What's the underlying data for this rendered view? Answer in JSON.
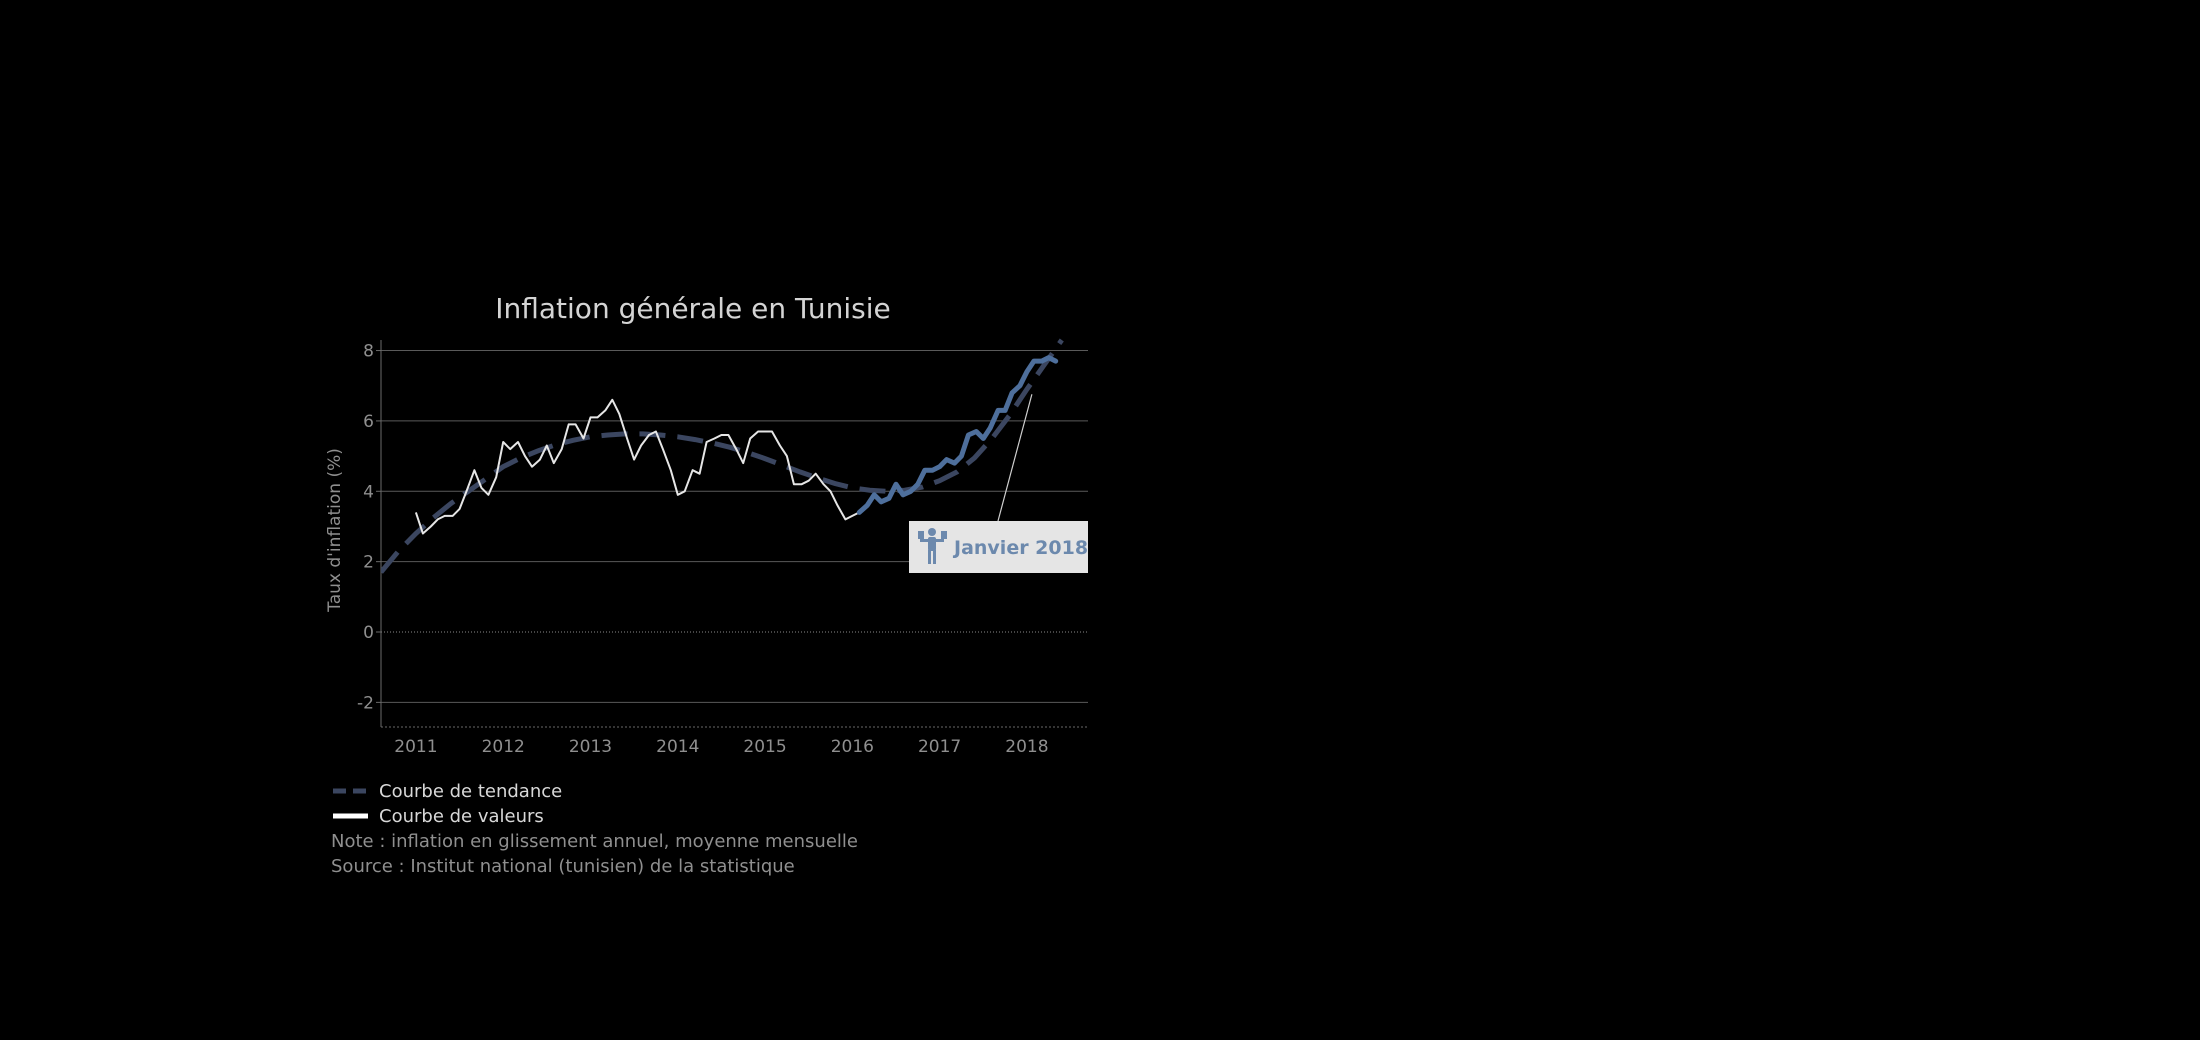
{
  "chart_data": {
    "type": "line",
    "title": "Inflation générale en Tunisie",
    "ylabel": "Taux d'inflation (%)",
    "xlabel": "",
    "ylim": [
      -2.7,
      8.3
    ],
    "xlim": [
      2010.6,
      2018.7
    ],
    "y_ticks": [
      8,
      6,
      4,
      2,
      0,
      -2
    ],
    "y_tick_labels": [
      "8",
      "6",
      "4",
      "2",
      "0",
      "-2"
    ],
    "x_ticks": [
      2011,
      2012,
      2013,
      2014,
      2015,
      2016,
      2017,
      2018
    ],
    "x_tick_labels": [
      "2011",
      "2012",
      "2013",
      "2014",
      "2015",
      "2016",
      "2017",
      "2018"
    ],
    "grid": true,
    "highlight_start": 2016.08,
    "series": [
      {
        "name": "Courbe de valeurs",
        "color": "#e6e6e6",
        "highlight_color": "#4e6f9c",
        "x": [
          2011.0,
          2011.08,
          2011.17,
          2011.25,
          2011.33,
          2011.42,
          2011.5,
          2011.58,
          2011.67,
          2011.75,
          2011.83,
          2011.92,
          2012.0,
          2012.08,
          2012.17,
          2012.25,
          2012.33,
          2012.42,
          2012.5,
          2012.58,
          2012.67,
          2012.75,
          2012.83,
          2012.92,
          2013.0,
          2013.08,
          2013.17,
          2013.25,
          2013.33,
          2013.42,
          2013.5,
          2013.58,
          2013.67,
          2013.75,
          2013.83,
          2013.92,
          2014.0,
          2014.08,
          2014.17,
          2014.25,
          2014.33,
          2014.42,
          2014.5,
          2014.58,
          2014.67,
          2014.75,
          2014.83,
          2014.92,
          2015.0,
          2015.08,
          2015.17,
          2015.25,
          2015.33,
          2015.42,
          2015.5,
          2015.58,
          2015.67,
          2015.75,
          2015.83,
          2015.92,
          2016.0,
          2016.08,
          2016.17,
          2016.25,
          2016.33,
          2016.42,
          2016.5,
          2016.58,
          2016.67,
          2016.75,
          2016.83,
          2016.92,
          2017.0,
          2017.08,
          2017.17,
          2017.25,
          2017.33,
          2017.42,
          2017.5,
          2017.58,
          2017.67,
          2017.75,
          2017.83,
          2017.92,
          2018.0,
          2018.08,
          2018.17,
          2018.25,
          2018.33
        ],
        "y": [
          3.4,
          2.8,
          3.0,
          3.2,
          3.3,
          3.3,
          3.5,
          4.0,
          4.6,
          4.1,
          3.9,
          4.4,
          5.4,
          5.2,
          5.4,
          5.0,
          4.7,
          4.9,
          5.3,
          4.8,
          5.2,
          5.9,
          5.9,
          5.5,
          6.1,
          6.1,
          6.3,
          6.6,
          6.2,
          5.5,
          4.9,
          5.3,
          5.6,
          5.7,
          5.2,
          4.6,
          3.9,
          4.0,
          4.6,
          4.5,
          5.4,
          5.5,
          5.6,
          5.6,
          5.2,
          4.8,
          5.5,
          5.7,
          5.7,
          5.7,
          5.3,
          5.0,
          4.2,
          4.2,
          4.3,
          4.5,
          4.2,
          4.0,
          3.6,
          3.2,
          3.3,
          3.4,
          3.6,
          3.9,
          3.7,
          3.8,
          4.2,
          3.9,
          4.0,
          4.2,
          4.6,
          4.6,
          4.7,
          4.9,
          4.8,
          5.0,
          5.6,
          5.7,
          5.5,
          5.8,
          6.3,
          6.3,
          6.8,
          7.0,
          7.4,
          7.7,
          7.7,
          7.8,
          7.7
        ]
      },
      {
        "name": "Courbe de tendance",
        "color": "#3b4660",
        "x": [
          2010.6,
          2010.8,
          2011.0,
          2011.2,
          2011.4,
          2011.6,
          2011.8,
          2012.0,
          2012.2,
          2012.4,
          2012.6,
          2012.8,
          2013.0,
          2013.2,
          2013.4,
          2013.6,
          2013.8,
          2014.0,
          2014.2,
          2014.4,
          2014.6,
          2014.8,
          2015.0,
          2015.2,
          2015.4,
          2015.6,
          2015.8,
          2016.0,
          2016.2,
          2016.4,
          2016.6,
          2016.8,
          2017.0,
          2017.2,
          2017.4,
          2017.6,
          2017.8,
          2018.0,
          2018.2,
          2018.4
        ],
        "y": [
          1.7,
          2.3,
          2.8,
          3.25,
          3.65,
          4.0,
          4.35,
          4.7,
          4.95,
          5.15,
          5.32,
          5.45,
          5.55,
          5.6,
          5.63,
          5.63,
          5.6,
          5.55,
          5.47,
          5.37,
          5.25,
          5.1,
          4.93,
          4.74,
          4.55,
          4.38,
          4.22,
          4.1,
          4.03,
          4.0,
          4.03,
          4.12,
          4.3,
          4.55,
          4.95,
          5.5,
          6.15,
          6.9,
          7.6,
          8.3
        ]
      }
    ],
    "annotation": {
      "text": "Janvier 2018",
      "icon": "person-carrying-documents-icon",
      "x": 2018.0,
      "y": 6.9,
      "color": "#6c89ad",
      "box_color": "#e5e5e5"
    },
    "legend": {
      "position": "bottom-left",
      "items": [
        {
          "label": "Courbe de tendance",
          "style": "dashed",
          "color": "#3b4660"
        },
        {
          "label": "Courbe de valeurs",
          "style": "solid",
          "color": "#ffffff"
        }
      ]
    },
    "note": "Note : inflation en glissement annuel, moyenne mensuelle",
    "source": "Source : Institut national (tunisien) de la statistique"
  }
}
